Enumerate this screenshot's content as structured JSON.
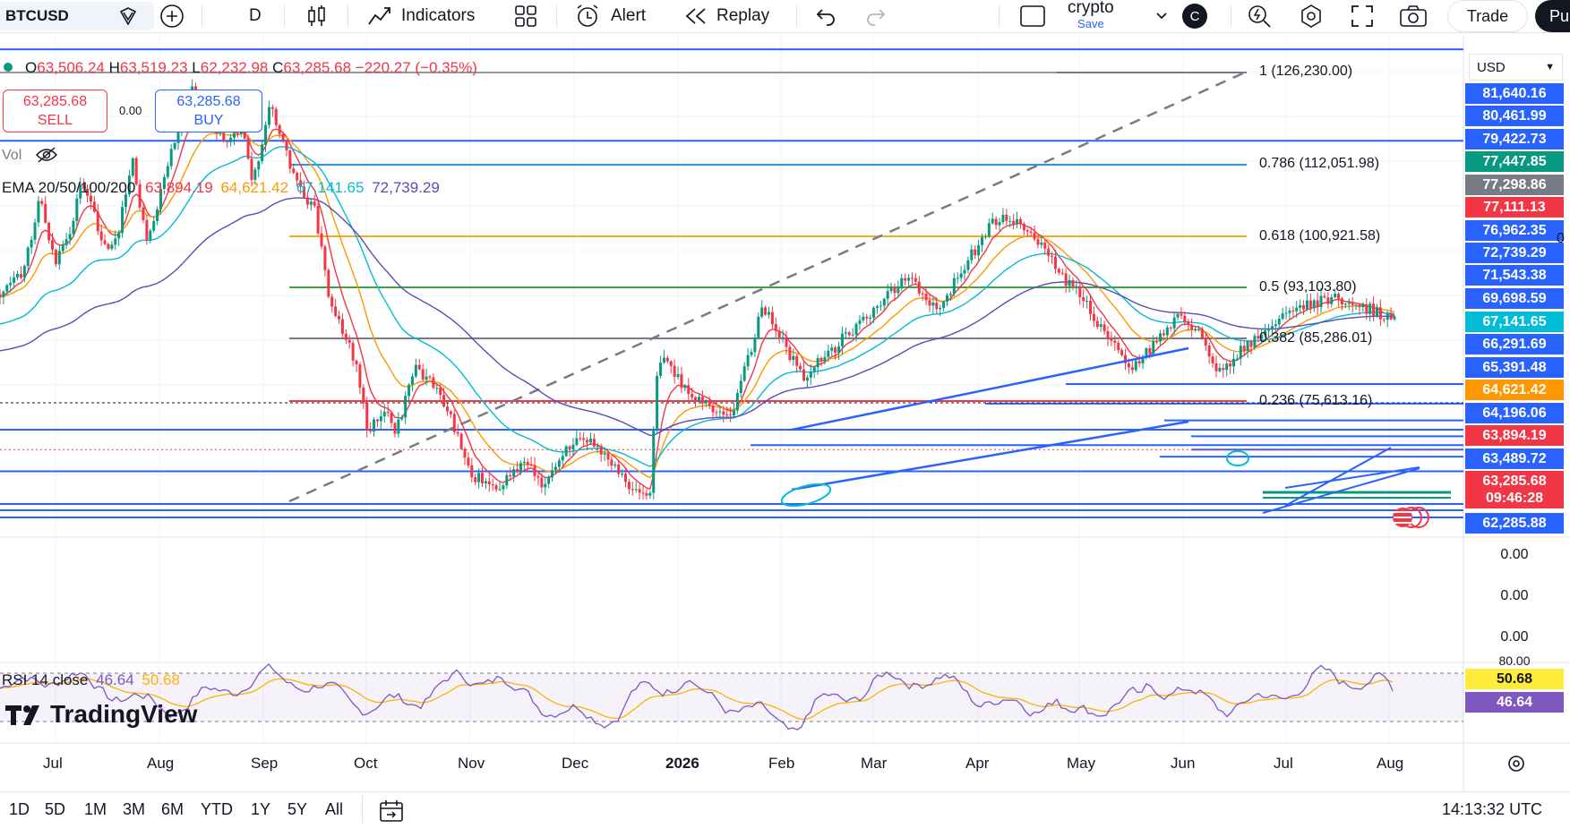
{
  "toolbar": {
    "symbol": "BTCUSD",
    "interval": "D",
    "indicators_label": "Indicators",
    "alert_label": "Alert",
    "replay_label": "Replay",
    "layout_name": "crypto",
    "layout_save": "Save",
    "layout_initial": "C",
    "trade_label": "Trade",
    "publish_label": "Pu"
  },
  "legend": {
    "o_label": "O",
    "o_value": "63,506.24",
    "h_label": "H",
    "h_value": "63,519.23",
    "l_label": "L",
    "l_value": "62,232.98",
    "c_label": "C",
    "c_value": "63,285.68",
    "change": "−220.27 (−0.35%)",
    "sell_price": "63,285.68",
    "sell_label": "SELL",
    "buy_price": "63,285.68",
    "buy_label": "BUY",
    "spread": "0.00",
    "vol_label": "Vol",
    "ema_label": "EMA 20/50/100/200",
    "ema20": "63,894.19",
    "ema50": "64,621.42",
    "ema100": "67,141.65",
    "ema200": "72,739.29",
    "rsi_label": "RSI 14 close",
    "rsi_value": "46.64",
    "rsi_ma": "50.68"
  },
  "fib": [
    {
      "label": "1 (126,230.00)",
      "color": "#787b86"
    },
    {
      "label": "0.786 (112,051.98)",
      "color": "#2196f3"
    },
    {
      "label": "0.618 (100,921.58)",
      "color": "#f9a825"
    },
    {
      "label": "0.5 (93,103.80)",
      "color": "#43a047"
    },
    {
      "label": "0.382 (85,286.01)",
      "color": "#787b86"
    },
    {
      "label": "0.236 (75,613.16)",
      "color": "#f23645"
    }
  ],
  "price_axis": {
    "currency": "USD",
    "labels": [
      {
        "text": "81,640.16",
        "bg": "#2962ff"
      },
      {
        "text": "80,461.99",
        "bg": "#2962ff"
      },
      {
        "text": "79,422.73",
        "bg": "#2962ff"
      },
      {
        "text": "77,447.85",
        "bg": "#089981"
      },
      {
        "text": "77,298.86",
        "bg": "#787b86"
      },
      {
        "text": "77,111.13",
        "bg": "#f23645"
      },
      {
        "text": "76,962.35",
        "bg": "#2962ff"
      },
      {
        "text": "72,739.29",
        "bg": "#2962ff"
      },
      {
        "text": "71,543.38",
        "bg": "#2962ff"
      },
      {
        "text": "69,698.59",
        "bg": "#2962ff"
      },
      {
        "text": "67,141.65",
        "bg": "#00bcd4"
      },
      {
        "text": "66,291.69",
        "bg": "#2962ff"
      },
      {
        "text": "65,391.48",
        "bg": "#2962ff"
      },
      {
        "text": "64,621.42",
        "bg": "#ff9800"
      },
      {
        "text": "64,196.06",
        "bg": "#2962ff"
      },
      {
        "text": "63,894.19",
        "bg": "#f23645"
      },
      {
        "text": "63,489.72",
        "bg": "#2962ff"
      },
      {
        "text": "63,285.68",
        "bg": "#f23645"
      },
      {
        "text": "09:46:28",
        "bg": "#f23645"
      },
      {
        "text": "62,285.88",
        "bg": "#2962ff"
      }
    ],
    "volume_labels": [
      "0.00",
      "0.00",
      "0.00"
    ],
    "rsi_top": "80.00",
    "rsi_labels": [
      {
        "text": "50.68",
        "bg": "#ffeb3b",
        "fg": "#131722"
      },
      {
        "text": "46.64",
        "bg": "#7e57c2",
        "fg": "#ffffff"
      }
    ],
    "side_zero": "0"
  },
  "time_axis": [
    "Jul",
    "Aug",
    "Sep",
    "Oct",
    "Nov",
    "Dec",
    "2026",
    "Feb",
    "Mar",
    "Apr",
    "May",
    "Jun",
    "Jul",
    "Aug"
  ],
  "ranges": [
    "1D",
    "5D",
    "1M",
    "3M",
    "6M",
    "YTD",
    "1Y",
    "5Y",
    "All"
  ],
  "clock": "14:13:32 UTC",
  "brand": "TradingView",
  "colors": {
    "up": "#089981",
    "down": "#f23645",
    "accent": "#2962ff",
    "ema20": "#f23645",
    "ema50": "#ff9800",
    "ema100": "#00bcd4",
    "ema200": "#5b4bb6"
  }
}
